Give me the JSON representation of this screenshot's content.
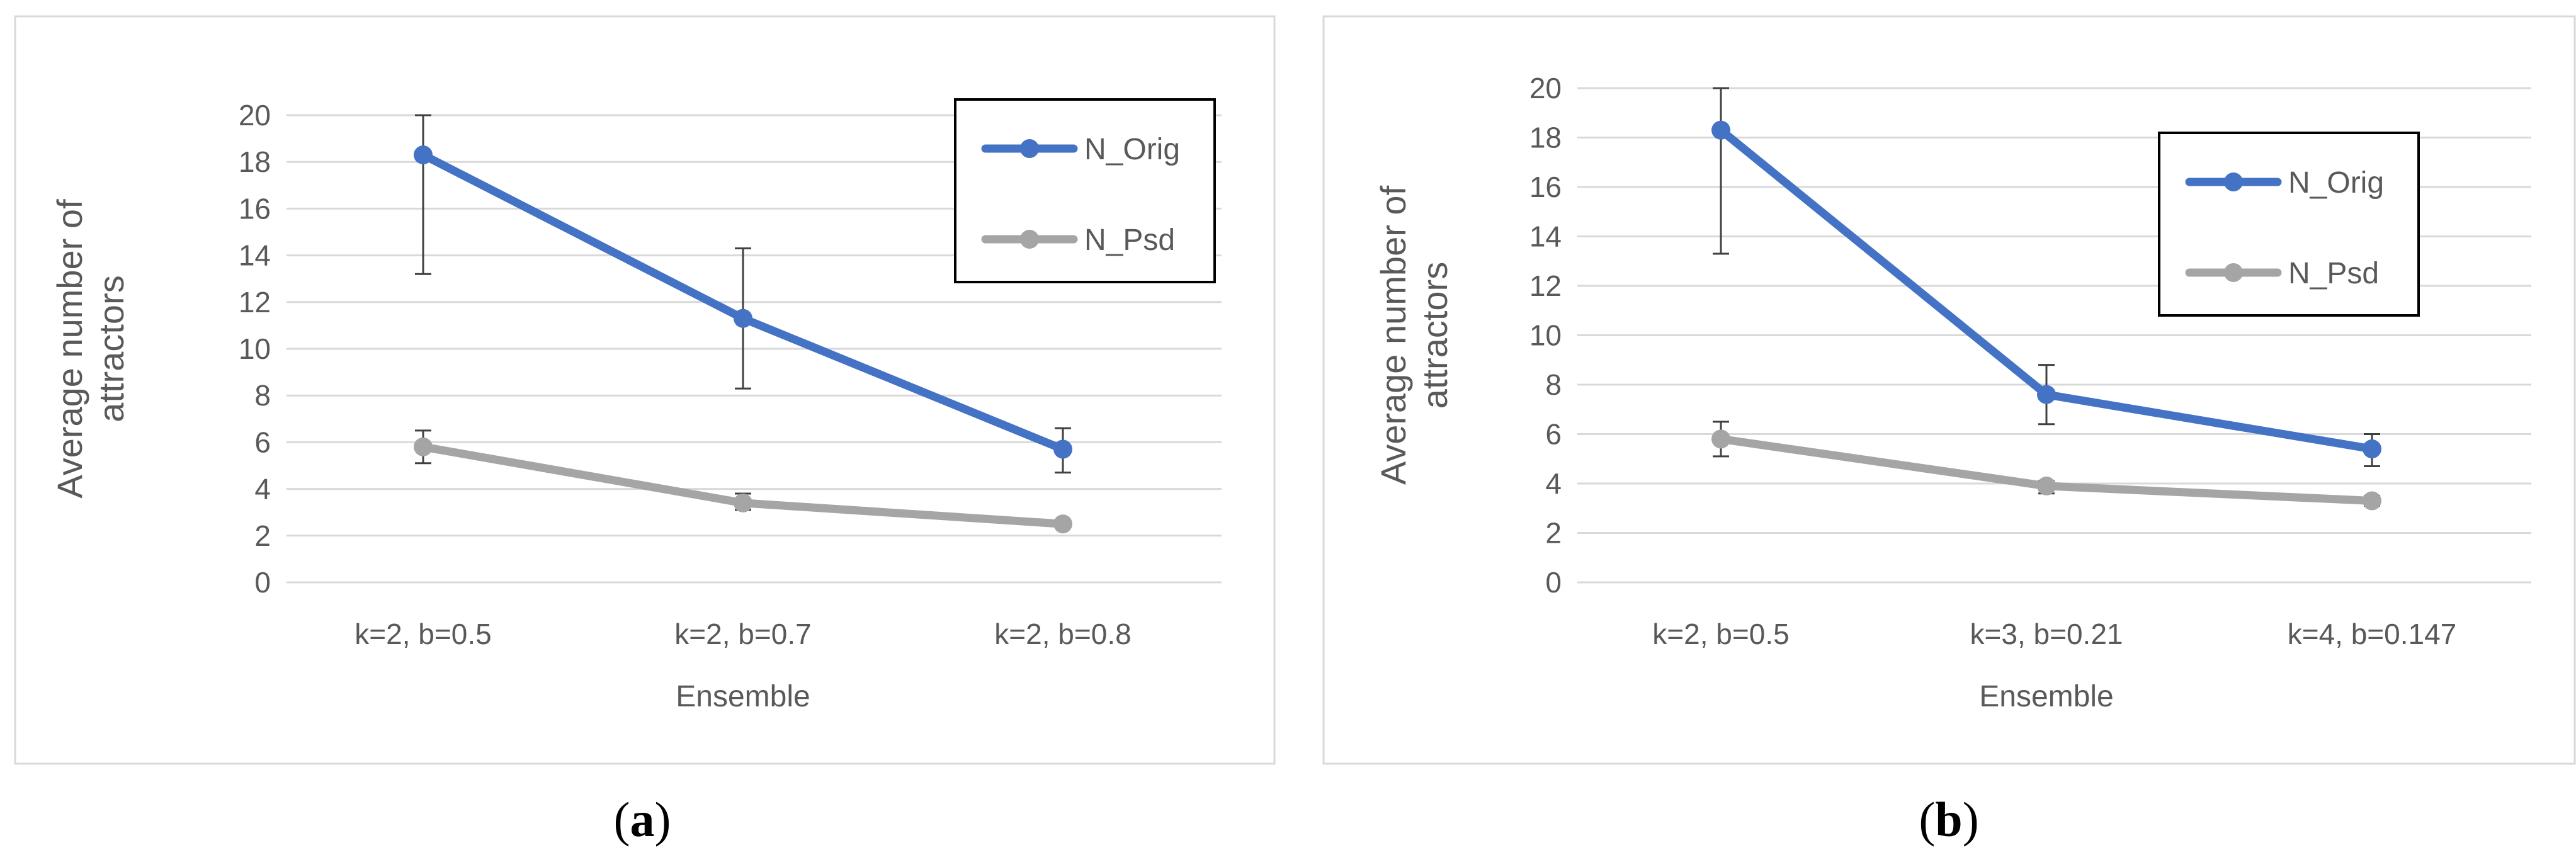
{
  "chart_data": [
    {
      "type": "line",
      "panel_label": "a",
      "categories": [
        "k=2, b=0.5",
        "k=2, b=0.7",
        "k=2, b=0.8"
      ],
      "series": [
        {
          "name": "N_Orig",
          "color": "#4472C4",
          "values": [
            18.3,
            11.3,
            5.7
          ],
          "error_lower": [
            13.2,
            8.3,
            4.7
          ],
          "error_upper": [
            20.0,
            14.3,
            6.6
          ]
        },
        {
          "name": "N_Psd",
          "color": "#A5A5A5",
          "values": [
            5.8,
            3.4,
            2.5
          ],
          "error_lower": [
            5.1,
            3.1,
            2.4
          ],
          "error_upper": [
            6.5,
            3.8,
            2.6
          ]
        }
      ],
      "xlabel": "Ensemble",
      "ylabel": "Average number of attractors",
      "ylabel_lines": [
        "Average number of",
        "attractors"
      ],
      "ylim": [
        0,
        20
      ],
      "yticks": [
        0,
        2,
        4,
        6,
        8,
        10,
        12,
        14,
        16,
        18,
        20
      ],
      "grid": true,
      "legend": "top-right"
    },
    {
      "type": "line",
      "panel_label": "b",
      "categories": [
        "k=2, b=0.5",
        "k=3, b=0.21",
        "k=4, b=0.147"
      ],
      "series": [
        {
          "name": "N_Orig",
          "color": "#4472C4",
          "values": [
            18.3,
            7.6,
            5.4
          ],
          "error_lower": [
            13.3,
            6.4,
            4.7
          ],
          "error_upper": [
            20.0,
            8.8,
            6.0
          ]
        },
        {
          "name": "N_Psd",
          "color": "#A5A5A5",
          "values": [
            5.8,
            3.9,
            3.3
          ],
          "error_lower": [
            5.1,
            3.6,
            3.1
          ],
          "error_upper": [
            6.5,
            4.1,
            3.5
          ]
        }
      ],
      "xlabel": "Ensemble",
      "ylabel": "Average number of attractors",
      "ylabel_lines": [
        "Average number  of",
        "attractors"
      ],
      "ylim": [
        0,
        20
      ],
      "yticks": [
        0,
        2,
        4,
        6,
        8,
        10,
        12,
        14,
        16,
        18,
        20
      ],
      "grid": true,
      "legend": "top-right"
    }
  ],
  "captions": [
    "a",
    "b"
  ]
}
